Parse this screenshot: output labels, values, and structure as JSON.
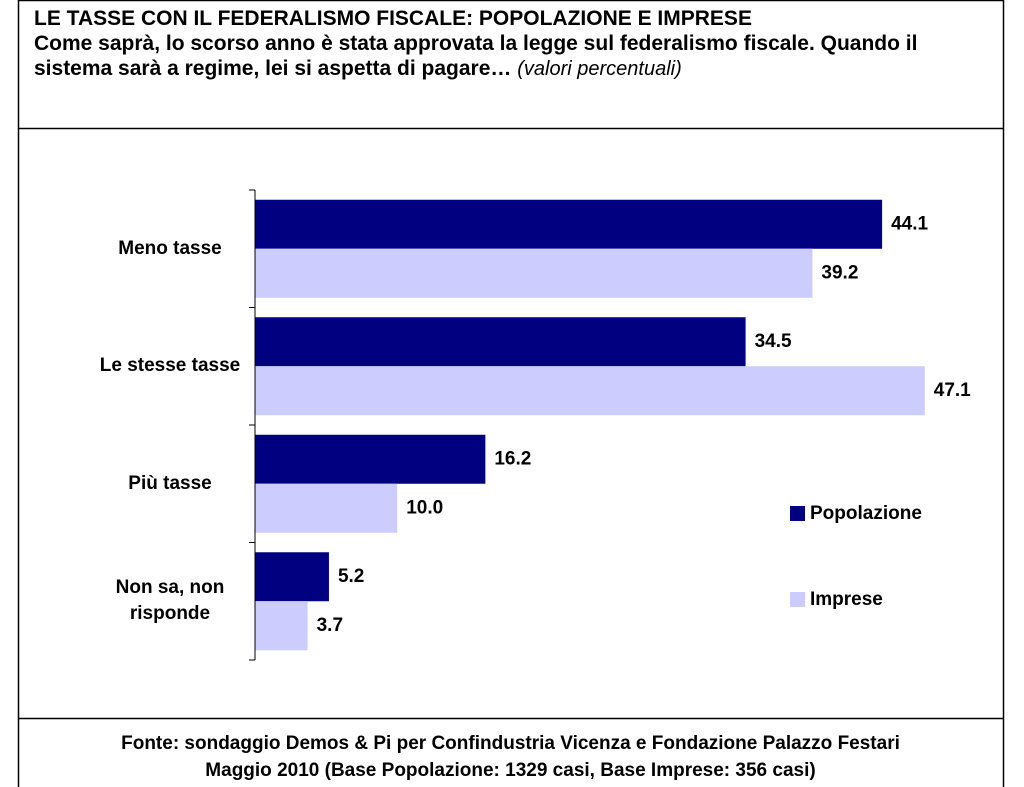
{
  "chart_data": {
    "type": "hbar",
    "title": "LE TASSE CON IL FEDERALISMO FISCALE: POPOLAZIONE E IMPRESE",
    "subtitle": "Come saprà, lo scorso anno è stata approvata la legge sul federalismo fiscale. Quando il sistema sarà a regime, lei si aspetta di pagare…",
    "note": "(valori percentuali)",
    "categories": [
      "Meno tasse",
      "Le stesse tasse",
      "Più tasse",
      "Non sa, non risponde"
    ],
    "series": [
      {
        "name": "Popolazione",
        "color": "#000080",
        "values": [
          44.1,
          34.5,
          16.2,
          5.2
        ],
        "value_labels": [
          "44.1",
          "34.5",
          "16.2",
          "5.2"
        ]
      },
      {
        "name": "Imprese",
        "color": "#ccccff",
        "values": [
          39.2,
          47.1,
          10.0,
          3.7
        ],
        "value_labels": [
          "39.2",
          "47.1",
          "10.0",
          "3.7"
        ]
      }
    ],
    "xlim": [
      0,
      50
    ],
    "legend": "right",
    "footer": [
      "Fonte: sondaggio Demos & Pi per Confindustria Vicenza e Fondazione Palazzo Festari",
      "Maggio 2010 (Base Popolazione: 1329 casi, Base Imprese: 356 casi)"
    ]
  }
}
